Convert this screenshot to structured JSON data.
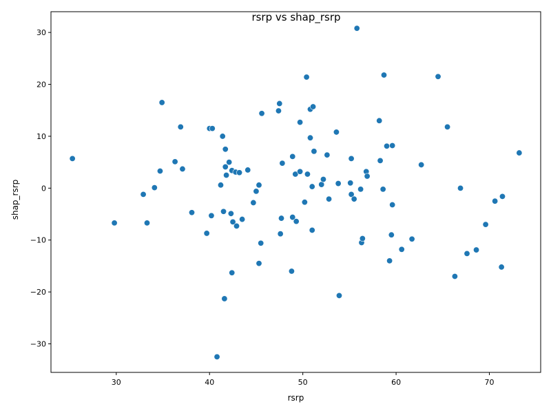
{
  "chart_data": {
    "type": "scatter",
    "title": "rsrp vs shap_rsrp",
    "xlabel": "rsrp",
    "ylabel": "shap_rsrp",
    "xlim": [
      23,
      75.5
    ],
    "ylim": [
      -35.5,
      34
    ],
    "xticks": [
      30,
      40,
      50,
      60,
      70
    ],
    "yticks": [
      -30,
      -20,
      -10,
      0,
      10,
      20,
      30
    ],
    "grid": false,
    "marker_color": "#1f77b4",
    "marker_edge": "#ffffff",
    "points": [
      {
        "x": 25.3,
        "y": 5.7
      },
      {
        "x": 29.8,
        "y": -6.7
      },
      {
        "x": 32.9,
        "y": -1.2
      },
      {
        "x": 33.3,
        "y": -6.7
      },
      {
        "x": 34.1,
        "y": 0.1
      },
      {
        "x": 34.7,
        "y": 3.3
      },
      {
        "x": 34.9,
        "y": 16.5
      },
      {
        "x": 36.3,
        "y": 5.1
      },
      {
        "x": 36.9,
        "y": 11.8
      },
      {
        "x": 37.1,
        "y": 3.7
      },
      {
        "x": 38.1,
        "y": -4.7
      },
      {
        "x": 39.7,
        "y": -8.7
      },
      {
        "x": 40.0,
        "y": 11.5
      },
      {
        "x": 40.3,
        "y": 11.5
      },
      {
        "x": 40.2,
        "y": -5.3
      },
      {
        "x": 40.8,
        "y": -32.5
      },
      {
        "x": 41.2,
        "y": 0.6
      },
      {
        "x": 41.4,
        "y": 10.0
      },
      {
        "x": 41.5,
        "y": -4.5
      },
      {
        "x": 41.6,
        "y": -21.3
      },
      {
        "x": 41.7,
        "y": 7.5
      },
      {
        "x": 41.7,
        "y": 4.1
      },
      {
        "x": 41.8,
        "y": 2.5
      },
      {
        "x": 42.1,
        "y": 5.0
      },
      {
        "x": 42.3,
        "y": -4.9
      },
      {
        "x": 42.4,
        "y": 3.4
      },
      {
        "x": 42.4,
        "y": -16.3
      },
      {
        "x": 42.5,
        "y": -6.5
      },
      {
        "x": 42.8,
        "y": 3.1
      },
      {
        "x": 42.9,
        "y": -7.3
      },
      {
        "x": 43.2,
        "y": 3.0
      },
      {
        "x": 43.5,
        "y": -6.0
      },
      {
        "x": 44.1,
        "y": 3.5
      },
      {
        "x": 44.7,
        "y": -2.8
      },
      {
        "x": 45.0,
        "y": -0.6
      },
      {
        "x": 45.3,
        "y": 0.6
      },
      {
        "x": 45.3,
        "y": -14.5
      },
      {
        "x": 45.5,
        "y": -10.6
      },
      {
        "x": 45.6,
        "y": 14.4
      },
      {
        "x": 47.4,
        "y": 14.9
      },
      {
        "x": 47.5,
        "y": 16.3
      },
      {
        "x": 47.6,
        "y": -8.8
      },
      {
        "x": 47.7,
        "y": -5.8
      },
      {
        "x": 47.8,
        "y": 4.8
      },
      {
        "x": 48.8,
        "y": -16.0
      },
      {
        "x": 48.9,
        "y": 6.1
      },
      {
        "x": 48.9,
        "y": -5.6
      },
      {
        "x": 49.2,
        "y": 2.7
      },
      {
        "x": 49.3,
        "y": -6.4
      },
      {
        "x": 49.7,
        "y": 12.7
      },
      {
        "x": 49.7,
        "y": 3.2
      },
      {
        "x": 50.2,
        "y": -2.7
      },
      {
        "x": 50.4,
        "y": 21.4
      },
      {
        "x": 50.5,
        "y": 2.7
      },
      {
        "x": 50.8,
        "y": 15.2
      },
      {
        "x": 50.8,
        "y": 9.7
      },
      {
        "x": 51.0,
        "y": 0.3
      },
      {
        "x": 51.0,
        "y": -8.1
      },
      {
        "x": 51.1,
        "y": 15.7
      },
      {
        "x": 51.2,
        "y": 7.1
      },
      {
        "x": 52.0,
        "y": 0.7
      },
      {
        "x": 52.2,
        "y": 1.7
      },
      {
        "x": 52.6,
        "y": 6.4
      },
      {
        "x": 52.8,
        "y": -2.1
      },
      {
        "x": 53.6,
        "y": 10.8
      },
      {
        "x": 53.8,
        "y": 0.9
      },
      {
        "x": 53.9,
        "y": -20.7
      },
      {
        "x": 55.1,
        "y": 1.0
      },
      {
        "x": 55.2,
        "y": 5.7
      },
      {
        "x": 55.2,
        "y": -1.2
      },
      {
        "x": 55.5,
        "y": -2.1
      },
      {
        "x": 55.8,
        "y": 30.8
      },
      {
        "x": 56.2,
        "y": -0.2
      },
      {
        "x": 56.3,
        "y": -10.5
      },
      {
        "x": 56.4,
        "y": -9.7
      },
      {
        "x": 56.8,
        "y": 3.2
      },
      {
        "x": 56.9,
        "y": 2.3
      },
      {
        "x": 58.2,
        "y": 13.0
      },
      {
        "x": 58.3,
        "y": 5.3
      },
      {
        "x": 58.6,
        "y": -0.2
      },
      {
        "x": 58.7,
        "y": 21.8
      },
      {
        "x": 59.0,
        "y": 8.1
      },
      {
        "x": 59.3,
        "y": -14.0
      },
      {
        "x": 59.5,
        "y": -9.0
      },
      {
        "x": 59.6,
        "y": 8.2
      },
      {
        "x": 59.6,
        "y": -3.2
      },
      {
        "x": 60.6,
        "y": -11.8
      },
      {
        "x": 61.7,
        "y": -9.8
      },
      {
        "x": 62.7,
        "y": 4.5
      },
      {
        "x": 64.5,
        "y": 21.5
      },
      {
        "x": 65.5,
        "y": 11.8
      },
      {
        "x": 66.3,
        "y": -17.0
      },
      {
        "x": 66.9,
        "y": 0.0
      },
      {
        "x": 67.6,
        "y": -12.6
      },
      {
        "x": 68.6,
        "y": -11.9
      },
      {
        "x": 69.6,
        "y": -7.0
      },
      {
        "x": 70.6,
        "y": -2.5
      },
      {
        "x": 71.3,
        "y": -15.2
      },
      {
        "x": 71.4,
        "y": -1.6
      },
      {
        "x": 73.2,
        "y": 6.8
      }
    ]
  }
}
